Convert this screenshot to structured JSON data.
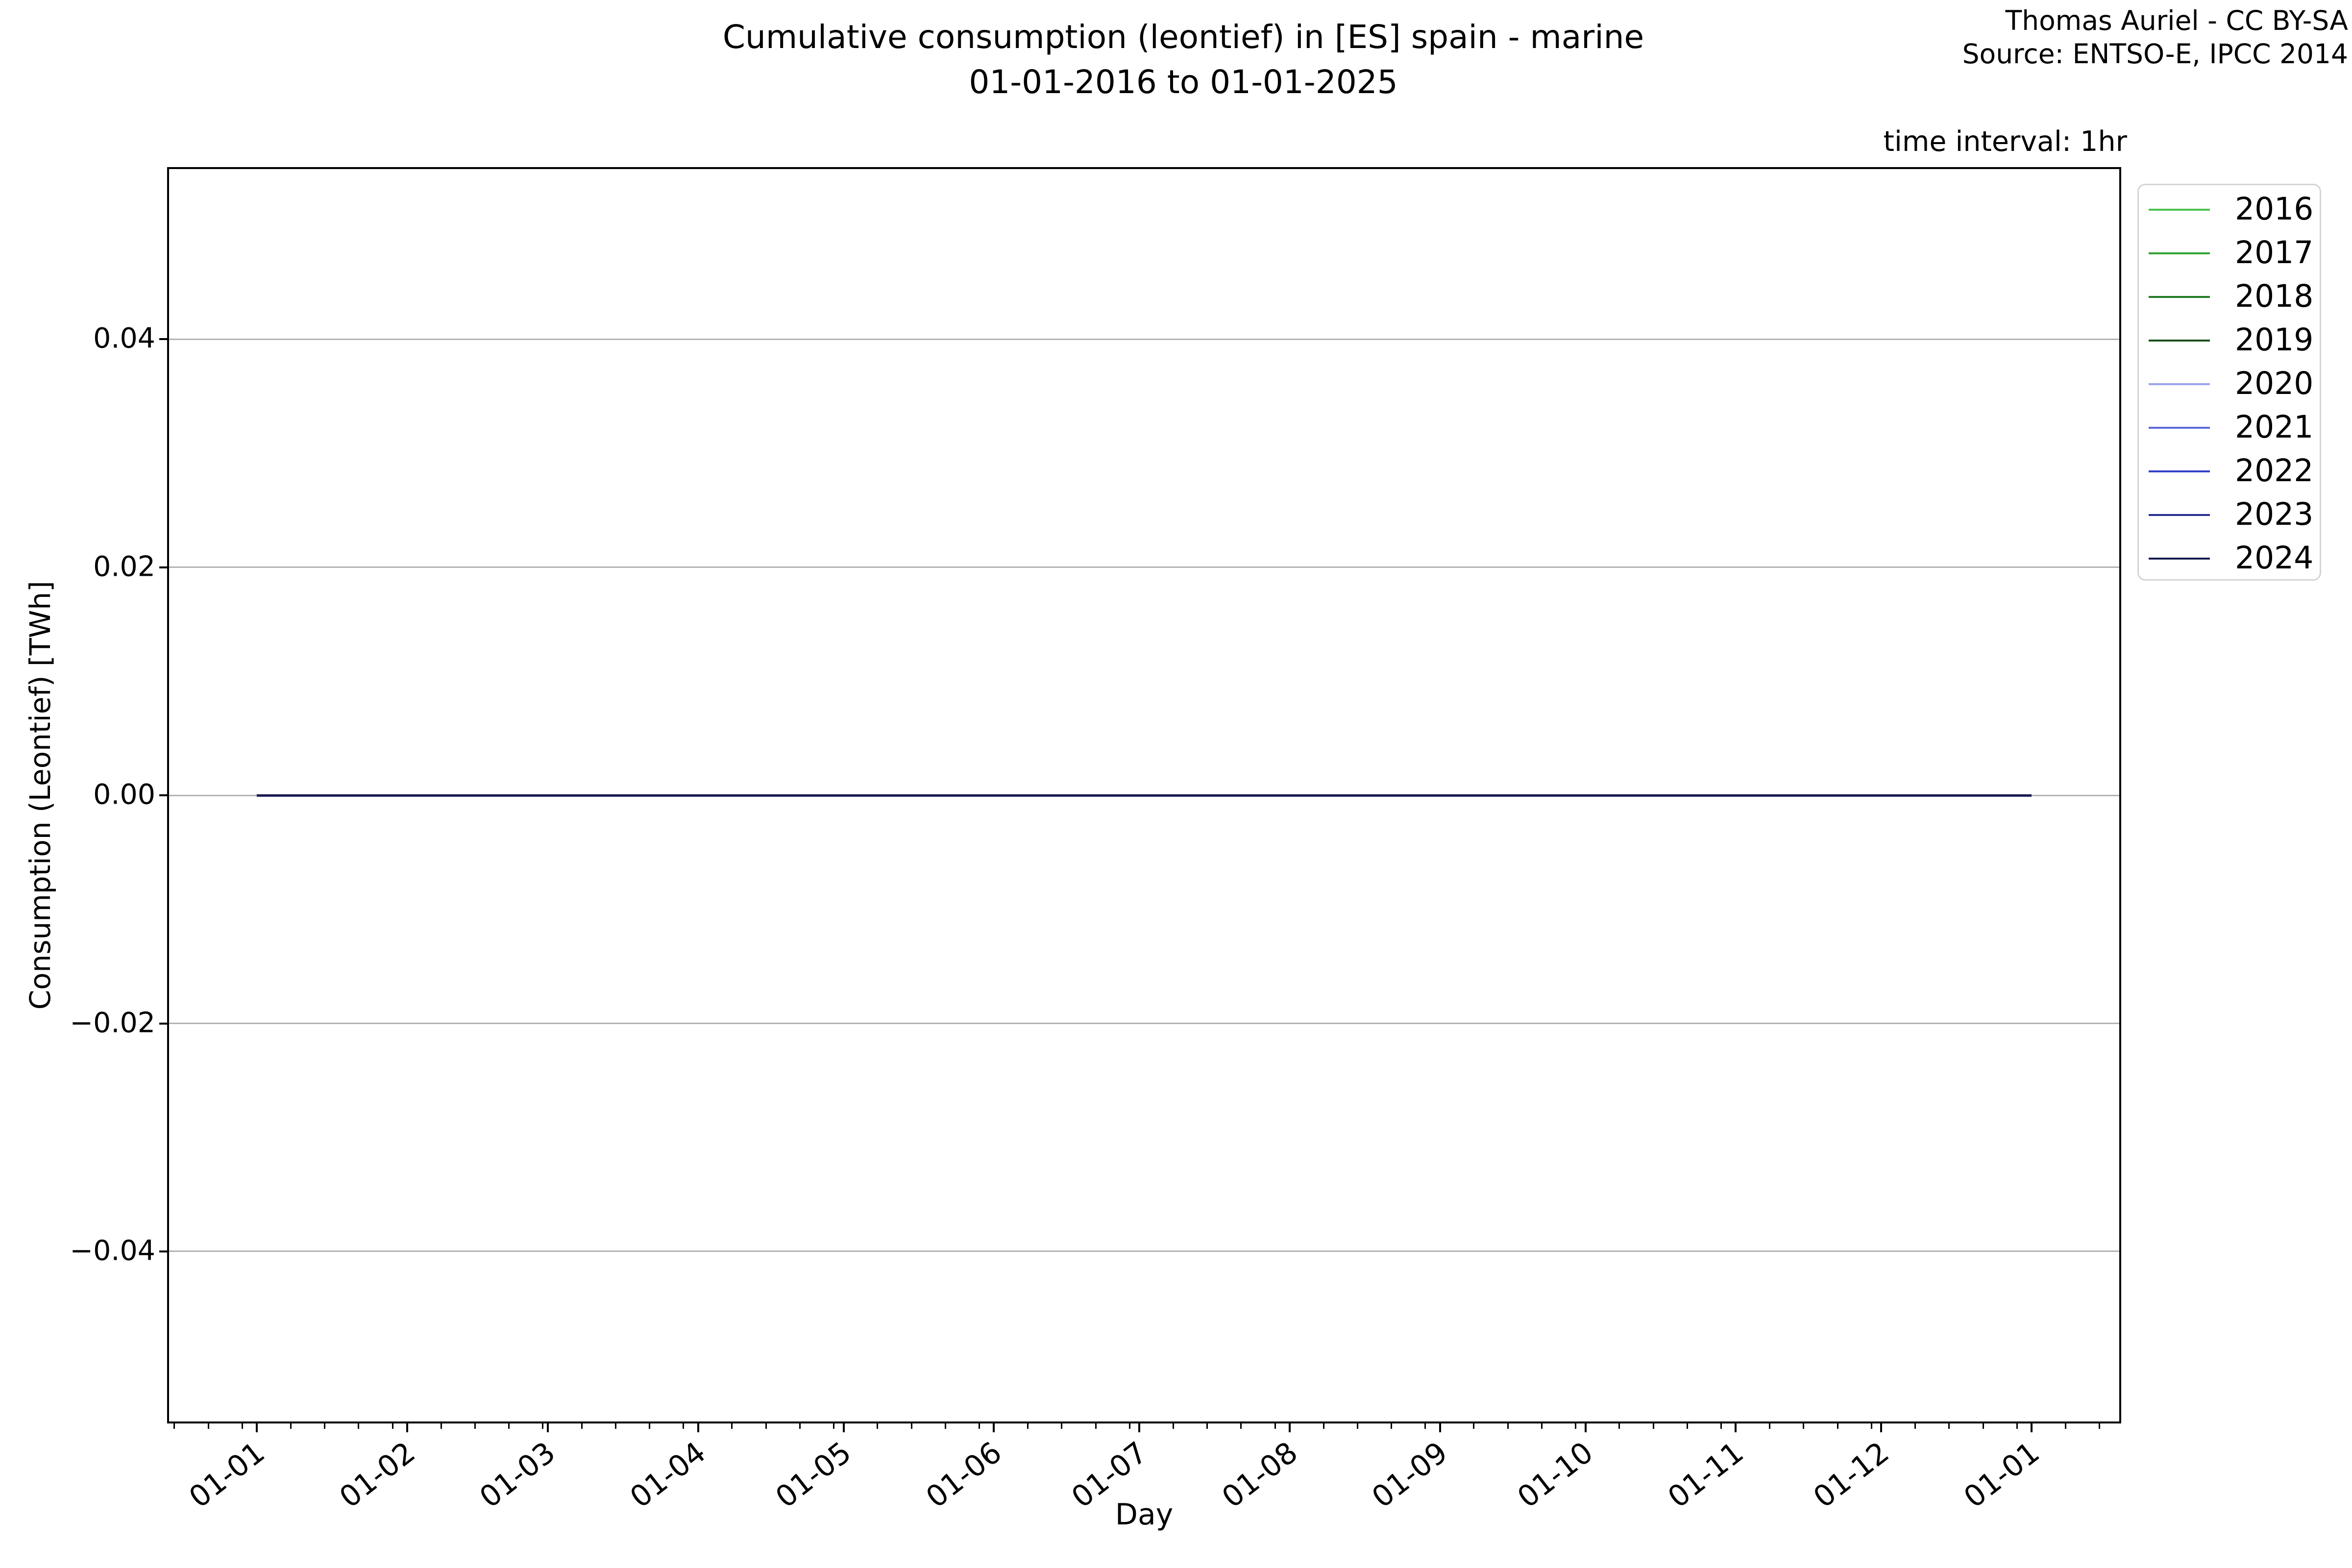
{
  "figure": {
    "attribution": [
      "Thomas Auriel - CC BY-SA",
      "Source: ENTSO-E, IPCC 2014"
    ],
    "time_interval_note": "time interval: 1hr"
  },
  "chart_data": {
    "type": "line",
    "title": "Cumulative consumption (leontief) in [ES] spain - marine",
    "subtitle": "01-01-2016 to 01-01-2025",
    "xlabel": "Day",
    "ylabel": "Consumption (Leontief) [TWh]",
    "x_axis": {
      "format": "DD-MM (first day of each month)",
      "tick_labels": [
        "01-01",
        "01-02",
        "01-03",
        "01-04",
        "01-05",
        "01-06",
        "01-07",
        "01-08",
        "01-09",
        "01-10",
        "01-11",
        "01-12",
        "01-01"
      ],
      "major_tick_days": [
        0,
        31,
        60,
        91,
        121,
        152,
        182,
        213,
        244,
        274,
        305,
        335,
        366
      ],
      "minor_tick_days": [
        -17,
        -10,
        -3,
        7,
        14,
        21,
        28,
        38,
        45,
        52,
        59,
        67,
        74,
        81,
        88,
        98,
        105,
        112,
        119,
        128,
        135,
        142,
        149,
        159,
        166,
        173,
        180,
        189,
        196,
        203,
        210,
        220,
        227,
        234,
        241,
        251,
        258,
        265,
        272,
        281,
        288,
        295,
        302,
        312,
        319,
        326,
        333,
        342,
        349,
        356,
        363,
        373,
        380
      ],
      "lim_days": [
        -18.3,
        384.3
      ]
    },
    "y_axis": {
      "tick_labels": [
        "0.04",
        "0.02",
        "0.00",
        "−0.02",
        "−0.04"
      ],
      "tick_values": [
        0.04,
        0.02,
        0.0,
        -0.02,
        -0.04
      ],
      "lim": [
        -0.055,
        0.055
      ]
    },
    "grid": {
      "horizontal": true,
      "vertical": false,
      "color": "#b3b3b3"
    },
    "series": [
      {
        "name": "2016",
        "color": "#4ac24b",
        "constant_value": 0.0
      },
      {
        "name": "2017",
        "color": "#2fa433",
        "constant_value": 0.0
      },
      {
        "name": "2018",
        "color": "#217d24",
        "constant_value": 0.0
      },
      {
        "name": "2019",
        "color": "#184f1c",
        "constant_value": 0.0
      },
      {
        "name": "2020",
        "color": "#9aa4ee",
        "constant_value": 0.0
      },
      {
        "name": "2021",
        "color": "#5c6ad9",
        "constant_value": 0.0
      },
      {
        "name": "2022",
        "color": "#3340c8",
        "constant_value": 0.0
      },
      {
        "name": "2023",
        "color": "#272e8f",
        "constant_value": 0.0
      },
      {
        "name": "2024",
        "color": "#181b52",
        "constant_value": 0.0
      }
    ],
    "plotted_line": {
      "value": 0.0,
      "start_day": 0,
      "end_day": 366,
      "color": "#181b52",
      "note": "all yearly series overlap at zero; topmost series (2024) is visible"
    },
    "legend": {
      "entries": [
        "2016",
        "2017",
        "2018",
        "2019",
        "2020",
        "2021",
        "2022",
        "2023",
        "2024"
      ],
      "location": "outside upper right"
    }
  },
  "colors": {
    "spine": "#000000",
    "grid": "#b3b3b3",
    "legend_border": "#d4d4d4",
    "background": "#ffffff"
  }
}
